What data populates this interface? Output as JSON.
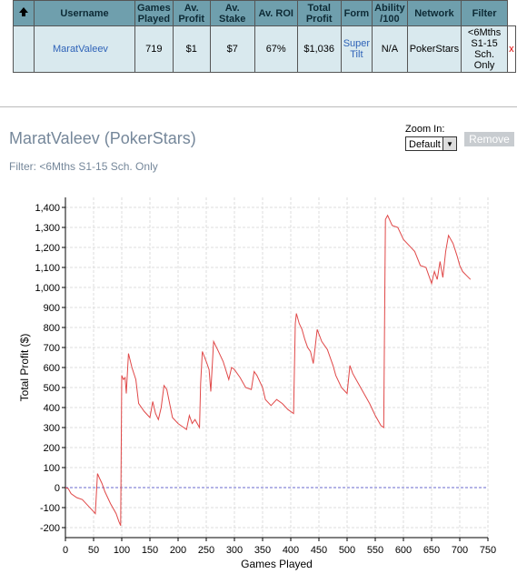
{
  "table": {
    "headers": [
      "Username",
      "Games Played",
      "Av. Profit",
      "Av. Stake",
      "Av. ROI",
      "Total Profit",
      "Form",
      "Ability /100",
      "Network",
      "Filter"
    ],
    "rows": [
      [
        "MaratValeev",
        "719",
        "$1",
        "$7",
        "67%",
        "$1,036",
        "Super Tilt",
        "N/A",
        "PokerStars",
        "<6Mths S1-15 Sch. Only",
        "x"
      ]
    ]
  },
  "panel": {
    "title": "MaratValeev (PokerStars)",
    "filter": "Filter: <6Mths S1-15 Sch. Only",
    "zoom_label": "Zoom In:",
    "zoom_value": "Default",
    "remove": "Remove"
  },
  "chart_data": {
    "type": "line",
    "xlabel": "Games Played",
    "ylabel": "Total Profit ($)",
    "color": "#e04848",
    "grid": true,
    "xlim": [
      0,
      750
    ],
    "ylim": [
      -250,
      1450
    ],
    "xticks": [
      0,
      50,
      100,
      150,
      200,
      250,
      300,
      350,
      400,
      450,
      500,
      550,
      600,
      650,
      700,
      750
    ],
    "yticks": [
      -200,
      -100,
      0,
      100,
      200,
      300,
      400,
      500,
      600,
      700,
      800,
      900,
      {
        "value": 1000,
        "label": "1,000"
      },
      {
        "value": 1100,
        "label": "1,100"
      },
      {
        "value": 1200,
        "label": "1,200"
      },
      {
        "value": 1300,
        "label": "1,300"
      },
      {
        "value": 1400,
        "label": "1,400"
      }
    ],
    "x": [
      0,
      5,
      10,
      20,
      30,
      40,
      50,
      53,
      57,
      60,
      65,
      70,
      80,
      90,
      95,
      98,
      100,
      103,
      106,
      108,
      112,
      118,
      125,
      130,
      140,
      150,
      155,
      160,
      165,
      170,
      175,
      180,
      190,
      200,
      210,
      215,
      220,
      225,
      230,
      238,
      240,
      243,
      250,
      255,
      258,
      263,
      270,
      280,
      290,
      295,
      300,
      310,
      320,
      330,
      335,
      340,
      350,
      355,
      365,
      375,
      385,
      395,
      405,
      408,
      410,
      415,
      420,
      425,
      430,
      435,
      440,
      447,
      455,
      465,
      475,
      480,
      490,
      500,
      505,
      510,
      520,
      530,
      540,
      550,
      560,
      565,
      568,
      572,
      580,
      590,
      600,
      610,
      620,
      630,
      640,
      650,
      655,
      660,
      665,
      670,
      675,
      680,
      688,
      695,
      700,
      705,
      712,
      719
    ],
    "values": [
      0,
      -5,
      -30,
      -50,
      -60,
      -90,
      -120,
      -130,
      70,
      50,
      20,
      -20,
      -80,
      -130,
      -170,
      -190,
      560,
      540,
      550,
      470,
      670,
      600,
      540,
      420,
      380,
      350,
      430,
      370,
      340,
      400,
      510,
      490,
      350,
      320,
      300,
      290,
      360,
      320,
      340,
      300,
      520,
      680,
      630,
      590,
      480,
      730,
      690,
      630,
      540,
      600,
      590,
      550,
      500,
      490,
      580,
      560,
      500,
      440,
      410,
      440,
      420,
      390,
      370,
      820,
      870,
      820,
      790,
      740,
      700,
      680,
      620,
      790,
      730,
      690,
      610,
      560,
      500,
      470,
      610,
      570,
      520,
      470,
      420,
      360,
      310,
      300,
      1340,
      1360,
      1310,
      1300,
      1240,
      1210,
      1180,
      1110,
      1100,
      1020,
      1080,
      1040,
      1130,
      1050,
      1180,
      1260,
      1220,
      1160,
      1110,
      1080,
      1060,
      1040
    ]
  }
}
